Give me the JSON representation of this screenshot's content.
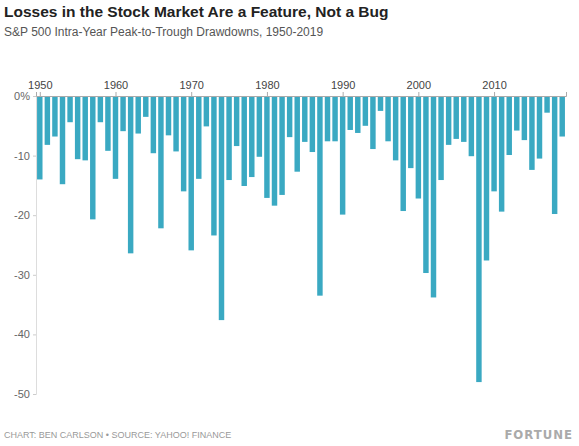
{
  "chart_data": {
    "type": "bar",
    "title": "Losses in the Stock Market Are a Feature, Not a Bug",
    "subtitle": "S&P 500 Intra-Year Peak-to-Trough Drawdowns, 1950-2019",
    "source": "CHART: BEN CARLSON • SOURCE: YAHOO! FINANCE",
    "credit": "FORTUNE",
    "x": [
      1950,
      1951,
      1952,
      1953,
      1954,
      1955,
      1956,
      1957,
      1958,
      1959,
      1960,
      1961,
      1962,
      1963,
      1964,
      1965,
      1966,
      1967,
      1968,
      1969,
      1970,
      1971,
      1972,
      1973,
      1974,
      1975,
      1976,
      1977,
      1978,
      1979,
      1980,
      1981,
      1982,
      1983,
      1984,
      1985,
      1986,
      1987,
      1988,
      1989,
      1990,
      1991,
      1992,
      1993,
      1994,
      1995,
      1996,
      1997,
      1998,
      1999,
      2000,
      2001,
      2002,
      2003,
      2004,
      2005,
      2006,
      2007,
      2008,
      2009,
      2010,
      2011,
      2012,
      2013,
      2014,
      2015,
      2016,
      2017,
      2018,
      2019
    ],
    "values": [
      -14,
      -8.2,
      -6.8,
      -14.8,
      -4.4,
      -10.6,
      -10.8,
      -20.7,
      -4.4,
      -9.2,
      -13.9,
      -5.9,
      -26.4,
      -6.3,
      -3.5,
      -9.6,
      -22.2,
      -6.6,
      -9.3,
      -16,
      -25.9,
      -13.9,
      -5.1,
      -23.4,
      -37.6,
      -14.1,
      -8.4,
      -15.1,
      -13.6,
      -10.2,
      -17.1,
      -18.4,
      -16.6,
      -6.9,
      -12.7,
      -7.7,
      -9.4,
      -33.5,
      -7.6,
      -7.6,
      -19.9,
      -5.7,
      -6.2,
      -5,
      -8.9,
      -2.5,
      -7.6,
      -10.8,
      -19.3,
      -12.1,
      -17.2,
      -29.7,
      -33.8,
      -14.1,
      -8.2,
      -7.2,
      -7.7,
      -10.1,
      -48,
      -27.6,
      -16,
      -19.4,
      -9.9,
      -5.8,
      -7.4,
      -12.4,
      -10.5,
      -2.8,
      -19.8,
      -6.8
    ],
    "color": "#3aa9c2",
    "xlim": [
      1949.5,
      2019.5
    ],
    "xticks": [
      1950,
      1960,
      1970,
      1980,
      1990,
      2000,
      2010
    ],
    "ylim": [
      -50,
      0
    ],
    "yticks": [
      {
        "value": 0,
        "label": "0%"
      },
      -10,
      -20,
      -30,
      -40,
      -50
    ],
    "grid": false
  }
}
